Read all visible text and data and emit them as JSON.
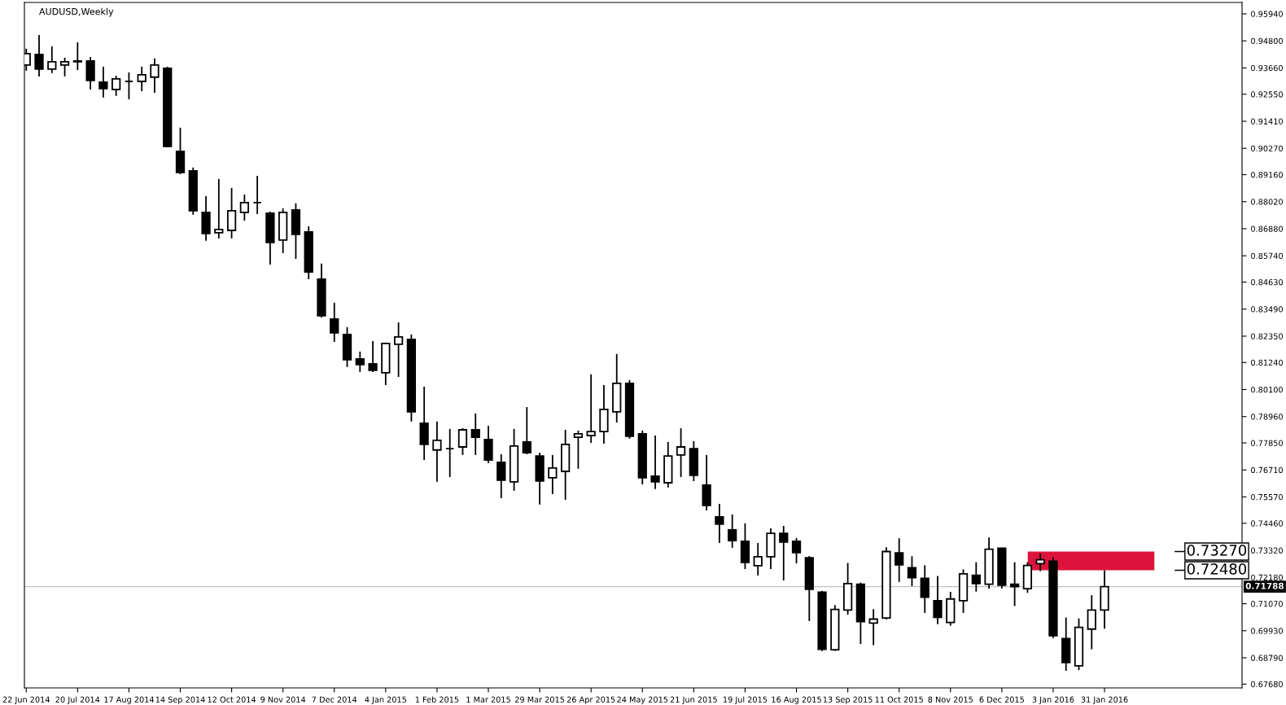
{
  "chart_data": {
    "type": "candlestick",
    "title": "AUDUSD,Weekly",
    "x": [
      "2014-06-22",
      "2014-06-29",
      "2014-07-06",
      "2014-07-13",
      "2014-07-20",
      "2014-07-27",
      "2014-08-03",
      "2014-08-10",
      "2014-08-17",
      "2014-08-24",
      "2014-08-31",
      "2014-09-07",
      "2014-09-14",
      "2014-09-21",
      "2014-09-28",
      "2014-10-05",
      "2014-10-12",
      "2014-10-19",
      "2014-10-26",
      "2014-11-02",
      "2014-11-09",
      "2014-11-16",
      "2014-11-23",
      "2014-11-30",
      "2014-12-07",
      "2014-12-14",
      "2014-12-21",
      "2014-12-28",
      "2015-01-04",
      "2015-01-11",
      "2015-01-18",
      "2015-01-25",
      "2015-02-01",
      "2015-02-08",
      "2015-02-15",
      "2015-02-22",
      "2015-03-01",
      "2015-03-08",
      "2015-03-15",
      "2015-03-22",
      "2015-03-29",
      "2015-04-05",
      "2015-04-12",
      "2015-04-19",
      "2015-04-26",
      "2015-05-03",
      "2015-05-10",
      "2015-05-17",
      "2015-05-24",
      "2015-05-31",
      "2015-06-07",
      "2015-06-14",
      "2015-06-21",
      "2015-06-28",
      "2015-07-05",
      "2015-07-12",
      "2015-07-19",
      "2015-07-26",
      "2015-08-02",
      "2015-08-09",
      "2015-08-16",
      "2015-08-23",
      "2015-08-30",
      "2015-09-06",
      "2015-09-13",
      "2015-09-20",
      "2015-09-27",
      "2015-10-04",
      "2015-10-11",
      "2015-10-18",
      "2015-10-25",
      "2015-11-01",
      "2015-11-08",
      "2015-11-15",
      "2015-11-22",
      "2015-11-29",
      "2015-12-06",
      "2015-12-13",
      "2015-12-20",
      "2015-12-27",
      "2016-01-03",
      "2016-01-10",
      "2016-01-17",
      "2016-01-24",
      "2016-01-31"
    ],
    "ohlc": [
      [
        0.9378,
        0.9447,
        0.9354,
        0.9426
      ],
      [
        0.9423,
        0.9505,
        0.933,
        0.9361
      ],
      [
        0.9361,
        0.9457,
        0.9344,
        0.9392
      ],
      [
        0.9378,
        0.9409,
        0.933,
        0.9392
      ],
      [
        0.9392,
        0.9474,
        0.9357,
        0.9395
      ],
      [
        0.9395,
        0.9412,
        0.9275,
        0.9313
      ],
      [
        0.9306,
        0.9371,
        0.9241,
        0.9279
      ],
      [
        0.9275,
        0.9333,
        0.9248,
        0.932
      ],
      [
        0.9309,
        0.9347,
        0.9234,
        0.9309
      ],
      [
        0.9309,
        0.9371,
        0.9268,
        0.9337
      ],
      [
        0.9327,
        0.9406,
        0.9261,
        0.9378
      ],
      [
        0.9364,
        0.9371,
        0.9031,
        0.9035
      ],
      [
        0.9014,
        0.9114,
        0.8918,
        0.8925
      ],
      [
        0.8932,
        0.8946,
        0.8747,
        0.8764
      ],
      [
        0.8757,
        0.8825,
        0.8637,
        0.8668
      ],
      [
        0.8671,
        0.8898,
        0.8647,
        0.8685
      ],
      [
        0.8681,
        0.886,
        0.8647,
        0.8764
      ],
      [
        0.8757,
        0.8832,
        0.8722,
        0.8798
      ],
      [
        0.8798,
        0.8911,
        0.875,
        0.8798
      ],
      [
        0.8753,
        0.876,
        0.8537,
        0.863
      ],
      [
        0.864,
        0.8774,
        0.8585,
        0.8757
      ],
      [
        0.8767,
        0.8795,
        0.8561,
        0.8664
      ],
      [
        0.8674,
        0.8698,
        0.8475,
        0.8506
      ],
      [
        0.8475,
        0.8541,
        0.8314,
        0.8321
      ],
      [
        0.8307,
        0.8376,
        0.8211,
        0.8249
      ],
      [
        0.8242,
        0.8273,
        0.8105,
        0.8136
      ],
      [
        0.8139,
        0.817,
        0.8084,
        0.8115
      ],
      [
        0.8118,
        0.8214,
        0.8084,
        0.8091
      ],
      [
        0.8081,
        0.8208,
        0.8029,
        0.8204
      ],
      [
        0.8201,
        0.8293,
        0.8063,
        0.8232
      ],
      [
        0.8221,
        0.8242,
        0.7875,
        0.7916
      ],
      [
        0.7868,
        0.8022,
        0.7713,
        0.7779
      ],
      [
        0.7755,
        0.7875,
        0.7621,
        0.7796
      ],
      [
        0.7761,
        0.7844,
        0.7641,
        0.7761
      ],
      [
        0.7768,
        0.7847,
        0.7734,
        0.784
      ],
      [
        0.784,
        0.7909,
        0.7734,
        0.7809
      ],
      [
        0.7799,
        0.7857,
        0.77,
        0.7713
      ],
      [
        0.7703,
        0.7737,
        0.7552,
        0.7628
      ],
      [
        0.7621,
        0.7844,
        0.7583,
        0.7772
      ],
      [
        0.7789,
        0.7936,
        0.7737,
        0.7744
      ],
      [
        0.773,
        0.7744,
        0.7525,
        0.7624
      ],
      [
        0.7638,
        0.7734,
        0.7569,
        0.7679
      ],
      [
        0.7665,
        0.784,
        0.7545,
        0.7779
      ],
      [
        0.7809,
        0.7837,
        0.7676,
        0.7823
      ],
      [
        0.7816,
        0.8074,
        0.7785,
        0.7833
      ],
      [
        0.7833,
        0.8029,
        0.7782,
        0.7926
      ],
      [
        0.7916,
        0.816,
        0.7871,
        0.8036
      ],
      [
        0.8036,
        0.805,
        0.7803,
        0.7813
      ],
      [
        0.7823,
        0.7837,
        0.761,
        0.7638
      ],
      [
        0.7645,
        0.7816,
        0.759,
        0.7621
      ],
      [
        0.7617,
        0.7789,
        0.7597,
        0.773
      ],
      [
        0.7734,
        0.7847,
        0.7641,
        0.7768
      ],
      [
        0.7761,
        0.7792,
        0.7624,
        0.7648
      ],
      [
        0.7607,
        0.7734,
        0.75,
        0.7521
      ],
      [
        0.7473,
        0.7528,
        0.7363,
        0.7442
      ],
      [
        0.7418,
        0.7483,
        0.7343,
        0.7373
      ],
      [
        0.737,
        0.7446,
        0.7253,
        0.7281
      ],
      [
        0.7267,
        0.7363,
        0.7226,
        0.7305
      ],
      [
        0.7305,
        0.7425,
        0.7253,
        0.7404
      ],
      [
        0.7404,
        0.7435,
        0.7205,
        0.7367
      ],
      [
        0.737,
        0.7384,
        0.7277,
        0.7322
      ],
      [
        0.7301,
        0.7308,
        0.7034,
        0.7168
      ],
      [
        0.7156,
        0.7161,
        0.6907,
        0.6915
      ],
      [
        0.6913,
        0.7101,
        0.6908,
        0.7083
      ],
      [
        0.708,
        0.7279,
        0.7061,
        0.7192
      ],
      [
        0.7189,
        0.7196,
        0.6937,
        0.7031
      ],
      [
        0.7025,
        0.7084,
        0.6932,
        0.7042
      ],
      [
        0.7047,
        0.7345,
        0.704,
        0.7327
      ],
      [
        0.7321,
        0.7383,
        0.7199,
        0.7271
      ],
      [
        0.7259,
        0.7307,
        0.7181,
        0.7217
      ],
      [
        0.7214,
        0.7269,
        0.7068,
        0.7134
      ],
      [
        0.712,
        0.7224,
        0.7021,
        0.7049
      ],
      [
        0.7028,
        0.7157,
        0.7014,
        0.7127
      ],
      [
        0.712,
        0.7252,
        0.7068,
        0.7233
      ],
      [
        0.7227,
        0.7282,
        0.7158,
        0.7192
      ],
      [
        0.7189,
        0.7386,
        0.7171,
        0.7337
      ],
      [
        0.7341,
        0.7343,
        0.7171,
        0.7185
      ],
      [
        0.7189,
        0.7282,
        0.7097,
        0.7179
      ],
      [
        0.717,
        0.7282,
        0.7153,
        0.7268
      ],
      [
        0.7276,
        0.7318,
        0.7244,
        0.7292
      ],
      [
        0.7286,
        0.7302,
        0.6962,
        0.6972
      ],
      [
        0.696,
        0.7049,
        0.6824,
        0.6859
      ],
      [
        0.6845,
        0.7045,
        0.6827,
        0.7007
      ],
      [
        0.7,
        0.7143,
        0.6915,
        0.708
      ],
      [
        0.708,
        0.7248,
        0.7002,
        0.7179
      ]
    ],
    "xlim": [
      "2014-06-21",
      "2016-04-15"
    ],
    "xticks": [
      {
        "value": "2014-06-22",
        "label": "22 Jun 2014"
      },
      {
        "value": "2014-07-20",
        "label": "20 Jul 2014"
      },
      {
        "value": "2014-08-17",
        "label": "17 Aug 2014"
      },
      {
        "value": "2014-09-14",
        "label": "14 Sep 2014"
      },
      {
        "value": "2014-10-12",
        "label": "12 Oct 2014"
      },
      {
        "value": "2014-11-09",
        "label": "9 Nov 2014"
      },
      {
        "value": "2014-12-07",
        "label": "7 Dec 2014"
      },
      {
        "value": "2015-01-04",
        "label": "4 Jan 2015"
      },
      {
        "value": "2015-02-01",
        "label": "1 Feb 2015"
      },
      {
        "value": "2015-03-01",
        "label": "1 Mar 2015"
      },
      {
        "value": "2015-03-29",
        "label": "29 Mar 2015"
      },
      {
        "value": "2015-04-26",
        "label": "26 Apr 2015"
      },
      {
        "value": "2015-05-24",
        "label": "24 May 2015"
      },
      {
        "value": "2015-06-21",
        "label": "21 Jun 2015"
      },
      {
        "value": "2015-07-19",
        "label": "19 Jul 2015"
      },
      {
        "value": "2015-08-16",
        "label": "16 Aug 2015"
      },
      {
        "value": "2015-09-13",
        "label": "13 Sep 2015"
      },
      {
        "value": "2015-10-11",
        "label": "11 Oct 2015"
      },
      {
        "value": "2015-11-08",
        "label": "8 Nov 2015"
      },
      {
        "value": "2015-12-06",
        "label": "6 Dec 2015"
      },
      {
        "value": "2016-01-03",
        "label": "3 Jan 2016"
      },
      {
        "value": "2016-01-31",
        "label": "31 Jan 2016"
      }
    ],
    "ylim": [
      0.6752,
      0.9642
    ],
    "yticks": [
      {
        "value": 0.9594,
        "label": "0.95940"
      },
      {
        "value": 0.948,
        "label": "0.94800"
      },
      {
        "value": 0.9366,
        "label": "0.93660"
      },
      {
        "value": 0.9255,
        "label": "0.92550"
      },
      {
        "value": 0.9141,
        "label": "0.91410"
      },
      {
        "value": 0.9027,
        "label": "0.90270"
      },
      {
        "value": 0.8916,
        "label": "0.89160"
      },
      {
        "value": 0.8802,
        "label": "0.88020"
      },
      {
        "value": 0.8688,
        "label": "0.86880"
      },
      {
        "value": 0.8574,
        "label": "0.85740"
      },
      {
        "value": 0.8463,
        "label": "0.84630"
      },
      {
        "value": 0.8349,
        "label": "0.83490"
      },
      {
        "value": 0.8235,
        "label": "0.82350"
      },
      {
        "value": 0.8124,
        "label": "0.81240"
      },
      {
        "value": 0.801,
        "label": "0.80100"
      },
      {
        "value": 0.7896,
        "label": "0.78960"
      },
      {
        "value": 0.7785,
        "label": "0.77850"
      },
      {
        "value": 0.7671,
        "label": "0.76710"
      },
      {
        "value": 0.7557,
        "label": "0.75570"
      },
      {
        "value": 0.7446,
        "label": "0.74460"
      },
      {
        "value": 0.7332,
        "label": "0.73320"
      },
      {
        "value": 0.7218,
        "label": "0.72180"
      },
      {
        "value": 0.7107,
        "label": "0.71070"
      },
      {
        "value": 0.6993,
        "label": "0.69930"
      },
      {
        "value": 0.6879,
        "label": "0.68790"
      },
      {
        "value": 0.6768,
        "label": "0.67680"
      }
    ],
    "ref_lines": [
      {
        "axis": "y",
        "value": 0.71788,
        "label": "0.71788",
        "color": "#c0c0c0"
      }
    ],
    "bands": [
      {
        "axis": "y",
        "from": 0.7248,
        "to": 0.7327,
        "color": "#dc143c"
      }
    ],
    "annotations": [
      "0.73270",
      "0.72480"
    ],
    "grid": false
  }
}
